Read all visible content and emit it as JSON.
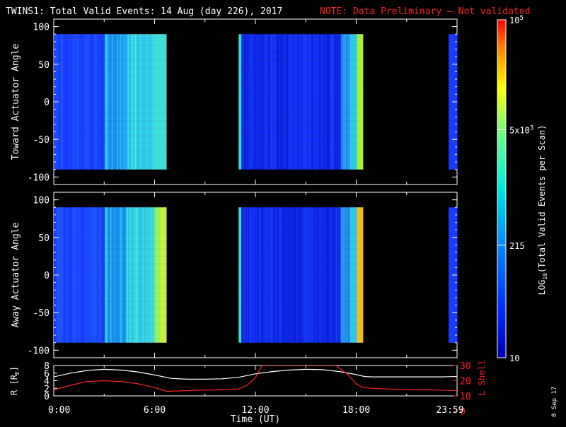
{
  "title": "TWINS1: Total Valid Events: 14 Aug (day 226), 2017",
  "note": "NOTE: Data Preliminary — Not validated",
  "colors": {
    "background": "#000000",
    "text": "#ffffff",
    "note": "#ff2020",
    "l_shell": "#ff2020",
    "r_line": "#ffffff"
  },
  "date_stamp": "8 Sep 17",
  "chart_data": [
    {
      "type": "heatmap",
      "ylabel": "Toward Actuator Angle",
      "ylim": [
        -110,
        110
      ],
      "yticks": [
        "100",
        "50",
        "0",
        "-50",
        "-100"
      ],
      "ytick_values": [
        100,
        50,
        0,
        -50,
        -100
      ],
      "xlim_hours": [
        0,
        24
      ],
      "angle_range": [
        -90,
        90
      ],
      "data_intervals_hours": [
        [
          0.0,
          6.7
        ],
        [
          11.0,
          18.4
        ],
        [
          23.5,
          24.0
        ]
      ]
    },
    {
      "type": "heatmap",
      "ylabel": "Away Actuator Angle",
      "ylim": [
        -110,
        110
      ],
      "yticks": [
        "100",
        "50",
        "0",
        "-50",
        "-100"
      ],
      "ytick_values": [
        100,
        50,
        0,
        -50,
        -100
      ],
      "xlim_hours": [
        0,
        24
      ],
      "angle_range": [
        -90,
        90
      ],
      "data_intervals_hours": [
        [
          0.0,
          6.7
        ],
        [
          11.0,
          18.4
        ],
        [
          23.5,
          24.0
        ]
      ]
    },
    {
      "type": "line",
      "xlabel": "Time (UT)",
      "xticks": [
        "0:00",
        "6:00",
        "12:00",
        "18:00",
        "23:59"
      ],
      "xtick_hours": [
        0,
        6,
        12,
        18,
        24
      ],
      "ylabel_left": "R [R",
      "ylabel_left_sub": "E",
      "ylabel_left_end": "]",
      "ylabel_right": "L Shell",
      "ylim_left": [
        0,
        8
      ],
      "ylim_right": [
        10,
        30
      ],
      "left_ticks": [
        "8",
        "6",
        "4",
        "2",
        "0"
      ],
      "left_tick_values": [
        8,
        6,
        4,
        2,
        0
      ],
      "right_ticks": [
        "30",
        "20",
        "10",
        "0"
      ],
      "right_tick_values": [
        30,
        20,
        10,
        0
      ],
      "series": [
        {
          "axis": "left",
          "x": [
            0,
            1,
            2,
            3,
            4,
            5,
            6,
            7,
            8,
            9,
            10,
            11,
            12,
            13,
            14,
            15,
            16,
            17,
            18,
            18.5,
            19,
            20,
            21,
            22,
            23,
            24
          ],
          "y": [
            5.0,
            6.0,
            6.7,
            7.0,
            6.8,
            6.3,
            5.5,
            4.6,
            4.4,
            4.4,
            4.5,
            4.9,
            5.8,
            6.4,
            6.8,
            7.0,
            6.9,
            6.4,
            5.6,
            5.1,
            5.0,
            5.0,
            5.0,
            5.0,
            5.0,
            5.1
          ]
        },
        {
          "axis": "right",
          "x": [
            0,
            1,
            2,
            3,
            4,
            5,
            6,
            6.7,
            8,
            9,
            10,
            11,
            11.5,
            12,
            12.4,
            13,
            16,
            16.8,
            17.5,
            18,
            18.4,
            19,
            20,
            21,
            22,
            23,
            24
          ],
          "y": [
            14,
            17,
            19.5,
            20,
            19.5,
            18,
            15.5,
            13,
            13.5,
            13.8,
            14,
            14.5,
            17,
            22,
            30,
            30,
            30,
            30,
            24,
            18,
            15.5,
            15,
            14.5,
            14.2,
            14,
            13.8,
            13.5
          ]
        }
      ]
    }
  ],
  "colorbar": {
    "label_main": "LOG",
    "label_sub": "10",
    "label_rest": "(Total Valid Events per Scan)",
    "ticks": [
      {
        "base": "10",
        "exp": "5",
        "value": 100000
      },
      {
        "base": "5x10",
        "exp": "3",
        "value": 5000
      },
      {
        "base": "215",
        "exp": "",
        "value": 215
      },
      {
        "base": "10",
        "exp": "",
        "value": 10
      }
    ],
    "range": [
      10,
      100000
    ]
  }
}
